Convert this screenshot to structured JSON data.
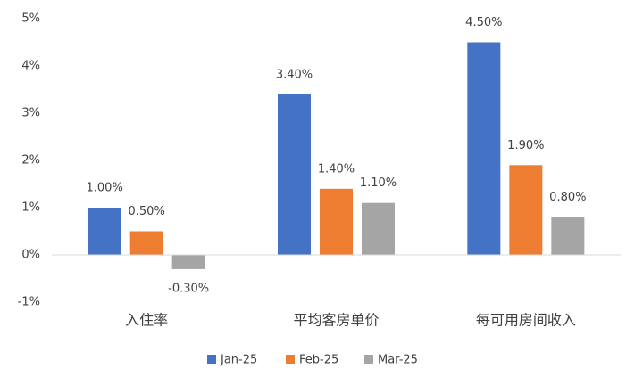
{
  "chart_data": {
    "type": "bar",
    "categories": [
      "入住率",
      "平均客房单价",
      "每可用房间收入"
    ],
    "series": [
      {
        "name": "Jan-25",
        "color": "#4472c4",
        "values": [
          1.0,
          3.4,
          4.5
        ],
        "value_labels": [
          "1.00%",
          "3.40%",
          "4.50%"
        ]
      },
      {
        "name": "Feb-25",
        "color": "#ed7d31",
        "values": [
          0.5,
          1.4,
          1.9
        ],
        "value_labels": [
          "0.50%",
          "1.40%",
          "1.90%"
        ]
      },
      {
        "name": "Mar-25",
        "color": "#a5a5a5",
        "values": [
          -0.3,
          1.1,
          0.8
        ],
        "value_labels": [
          "-0.30%",
          "1.10%",
          "0.80%"
        ]
      }
    ],
    "ylim": [
      -1,
      5
    ],
    "yticks": [
      {
        "value": -1,
        "label": "-1%"
      },
      {
        "value": 0,
        "label": "0%"
      },
      {
        "value": 1,
        "label": "1%"
      },
      {
        "value": 2,
        "label": "2%"
      },
      {
        "value": 3,
        "label": "3%"
      },
      {
        "value": 4,
        "label": "4%"
      },
      {
        "value": 5,
        "label": "5%"
      }
    ],
    "grid": false,
    "legend": "bottom"
  }
}
